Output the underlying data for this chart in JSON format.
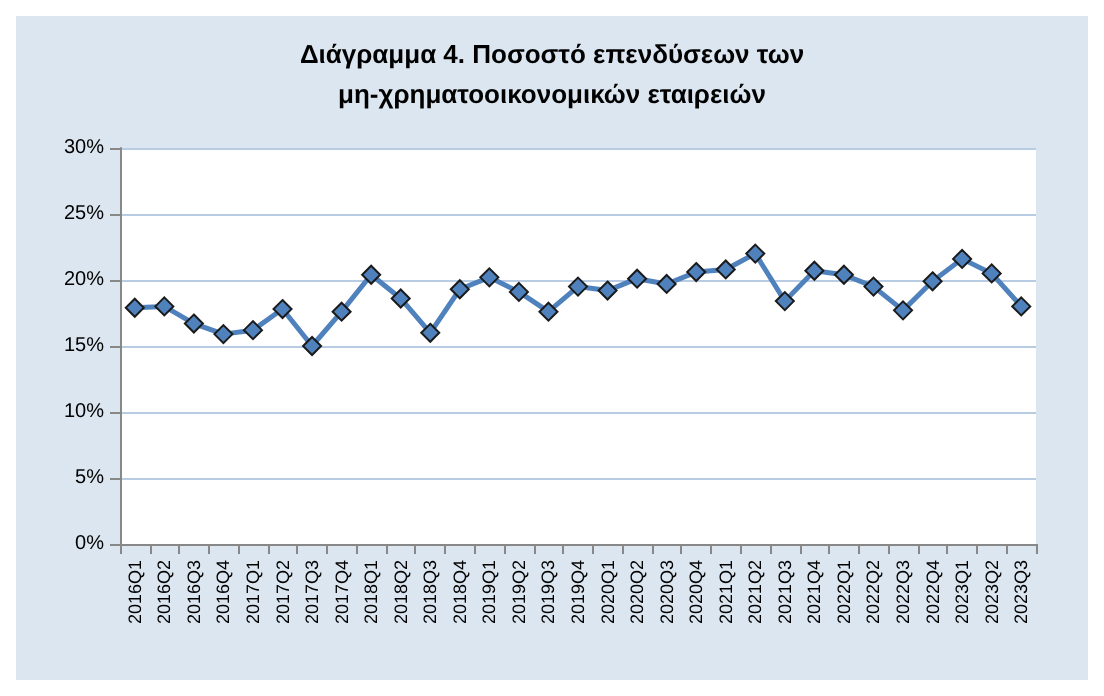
{
  "chart_data": {
    "type": "line",
    "title": "Διάγραμμα 4. Ποσοστό επενδύσεων των\nμη-χρηματοοικονομικών εταιρειών",
    "categories": [
      "2016Q1",
      "2016Q2",
      "2016Q3",
      "2016Q4",
      "2017Q1",
      "2017Q2",
      "2017Q3",
      "2017Q4",
      "2018Q1",
      "2018Q2",
      "2018Q3",
      "2018Q4",
      "2019Q1",
      "2019Q2",
      "2019Q3",
      "2019Q4",
      "2020Q1",
      "2020Q2",
      "2020Q3",
      "2020Q4",
      "2021Q1",
      "2021Q2",
      "2021Q3",
      "2021Q4",
      "2022Q1",
      "2022Q2",
      "2022Q3",
      "2022Q4",
      "2023Q1",
      "2023Q2",
      "2023Q3"
    ],
    "series": [
      {
        "color": "#4f81bd",
        "values": [
          17.9,
          18.0,
          16.7,
          15.9,
          16.2,
          17.8,
          15.0,
          17.6,
          20.4,
          18.6,
          16.0,
          19.3,
          20.2,
          19.1,
          17.6,
          19.5,
          19.2,
          20.1,
          19.7,
          20.6,
          20.8,
          22.0,
          18.4,
          20.7,
          20.4,
          19.5,
          17.7,
          19.9,
          21.6,
          20.5,
          18.0
        ]
      }
    ],
    "ylim": [
      0,
      30
    ],
    "yticks": [
      {
        "value": 0,
        "label": "0%"
      },
      {
        "value": 5,
        "label": "5%"
      },
      {
        "value": 10,
        "label": "10%"
      },
      {
        "value": 15,
        "label": "15%"
      },
      {
        "value": 20,
        "label": "20%"
      },
      {
        "value": 25,
        "label": "25%"
      },
      {
        "value": 30,
        "label": "30%"
      }
    ],
    "grid": "y",
    "marker": "diamond",
    "line_style": "solid"
  }
}
